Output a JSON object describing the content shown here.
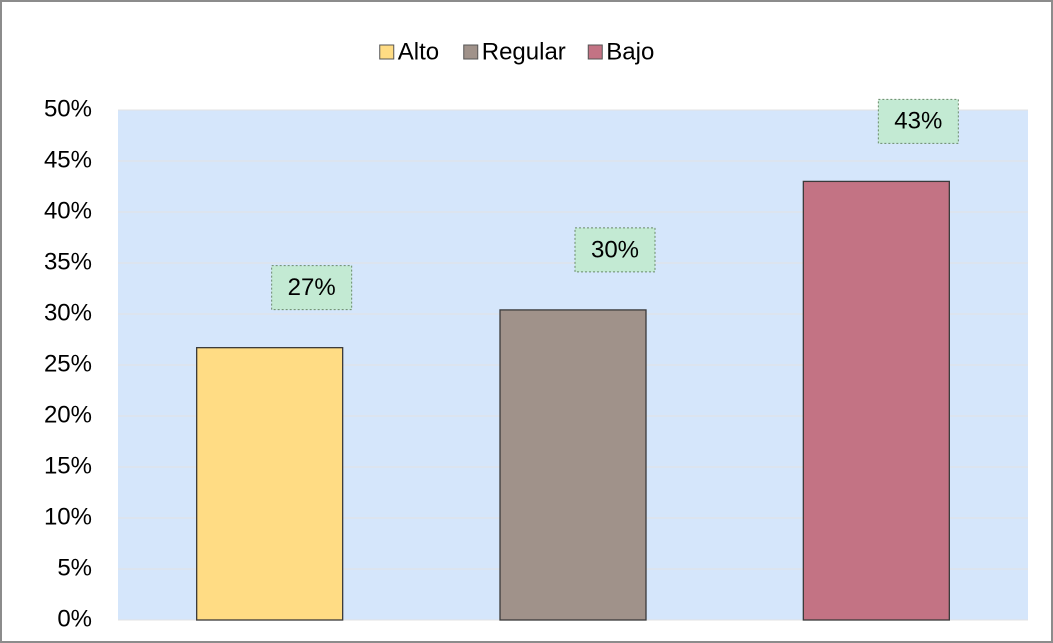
{
  "chart_data": {
    "type": "bar",
    "categories": [
      null
    ],
    "series": [
      {
        "name": "Alto",
        "color": "#ffdc84",
        "values": [
          26.7
        ],
        "value_labels": [
          "27%"
        ]
      },
      {
        "name": "Regular",
        "color": "#a0928a",
        "values": [
          30.4
        ],
        "value_labels": [
          "30%"
        ]
      },
      {
        "name": "Bajo",
        "color": "#c37384",
        "values": [
          43
        ],
        "value_labels": [
          "43%"
        ]
      }
    ],
    "ylim": [
      0,
      50
    ],
    "yticks": [
      {
        "value": 0,
        "label": "0%"
      },
      {
        "value": 5,
        "label": "5%"
      },
      {
        "value": 10,
        "label": "10%"
      },
      {
        "value": 15,
        "label": "15%"
      },
      {
        "value": 20,
        "label": "20%"
      },
      {
        "value": 25,
        "label": "25%"
      },
      {
        "value": 30,
        "label": "30%"
      },
      {
        "value": 35,
        "label": "35%"
      },
      {
        "value": 40,
        "label": "40%"
      },
      {
        "value": 45,
        "label": "45%"
      },
      {
        "value": 50,
        "label": "50%"
      }
    ],
    "grid": true,
    "legend": "top"
  }
}
